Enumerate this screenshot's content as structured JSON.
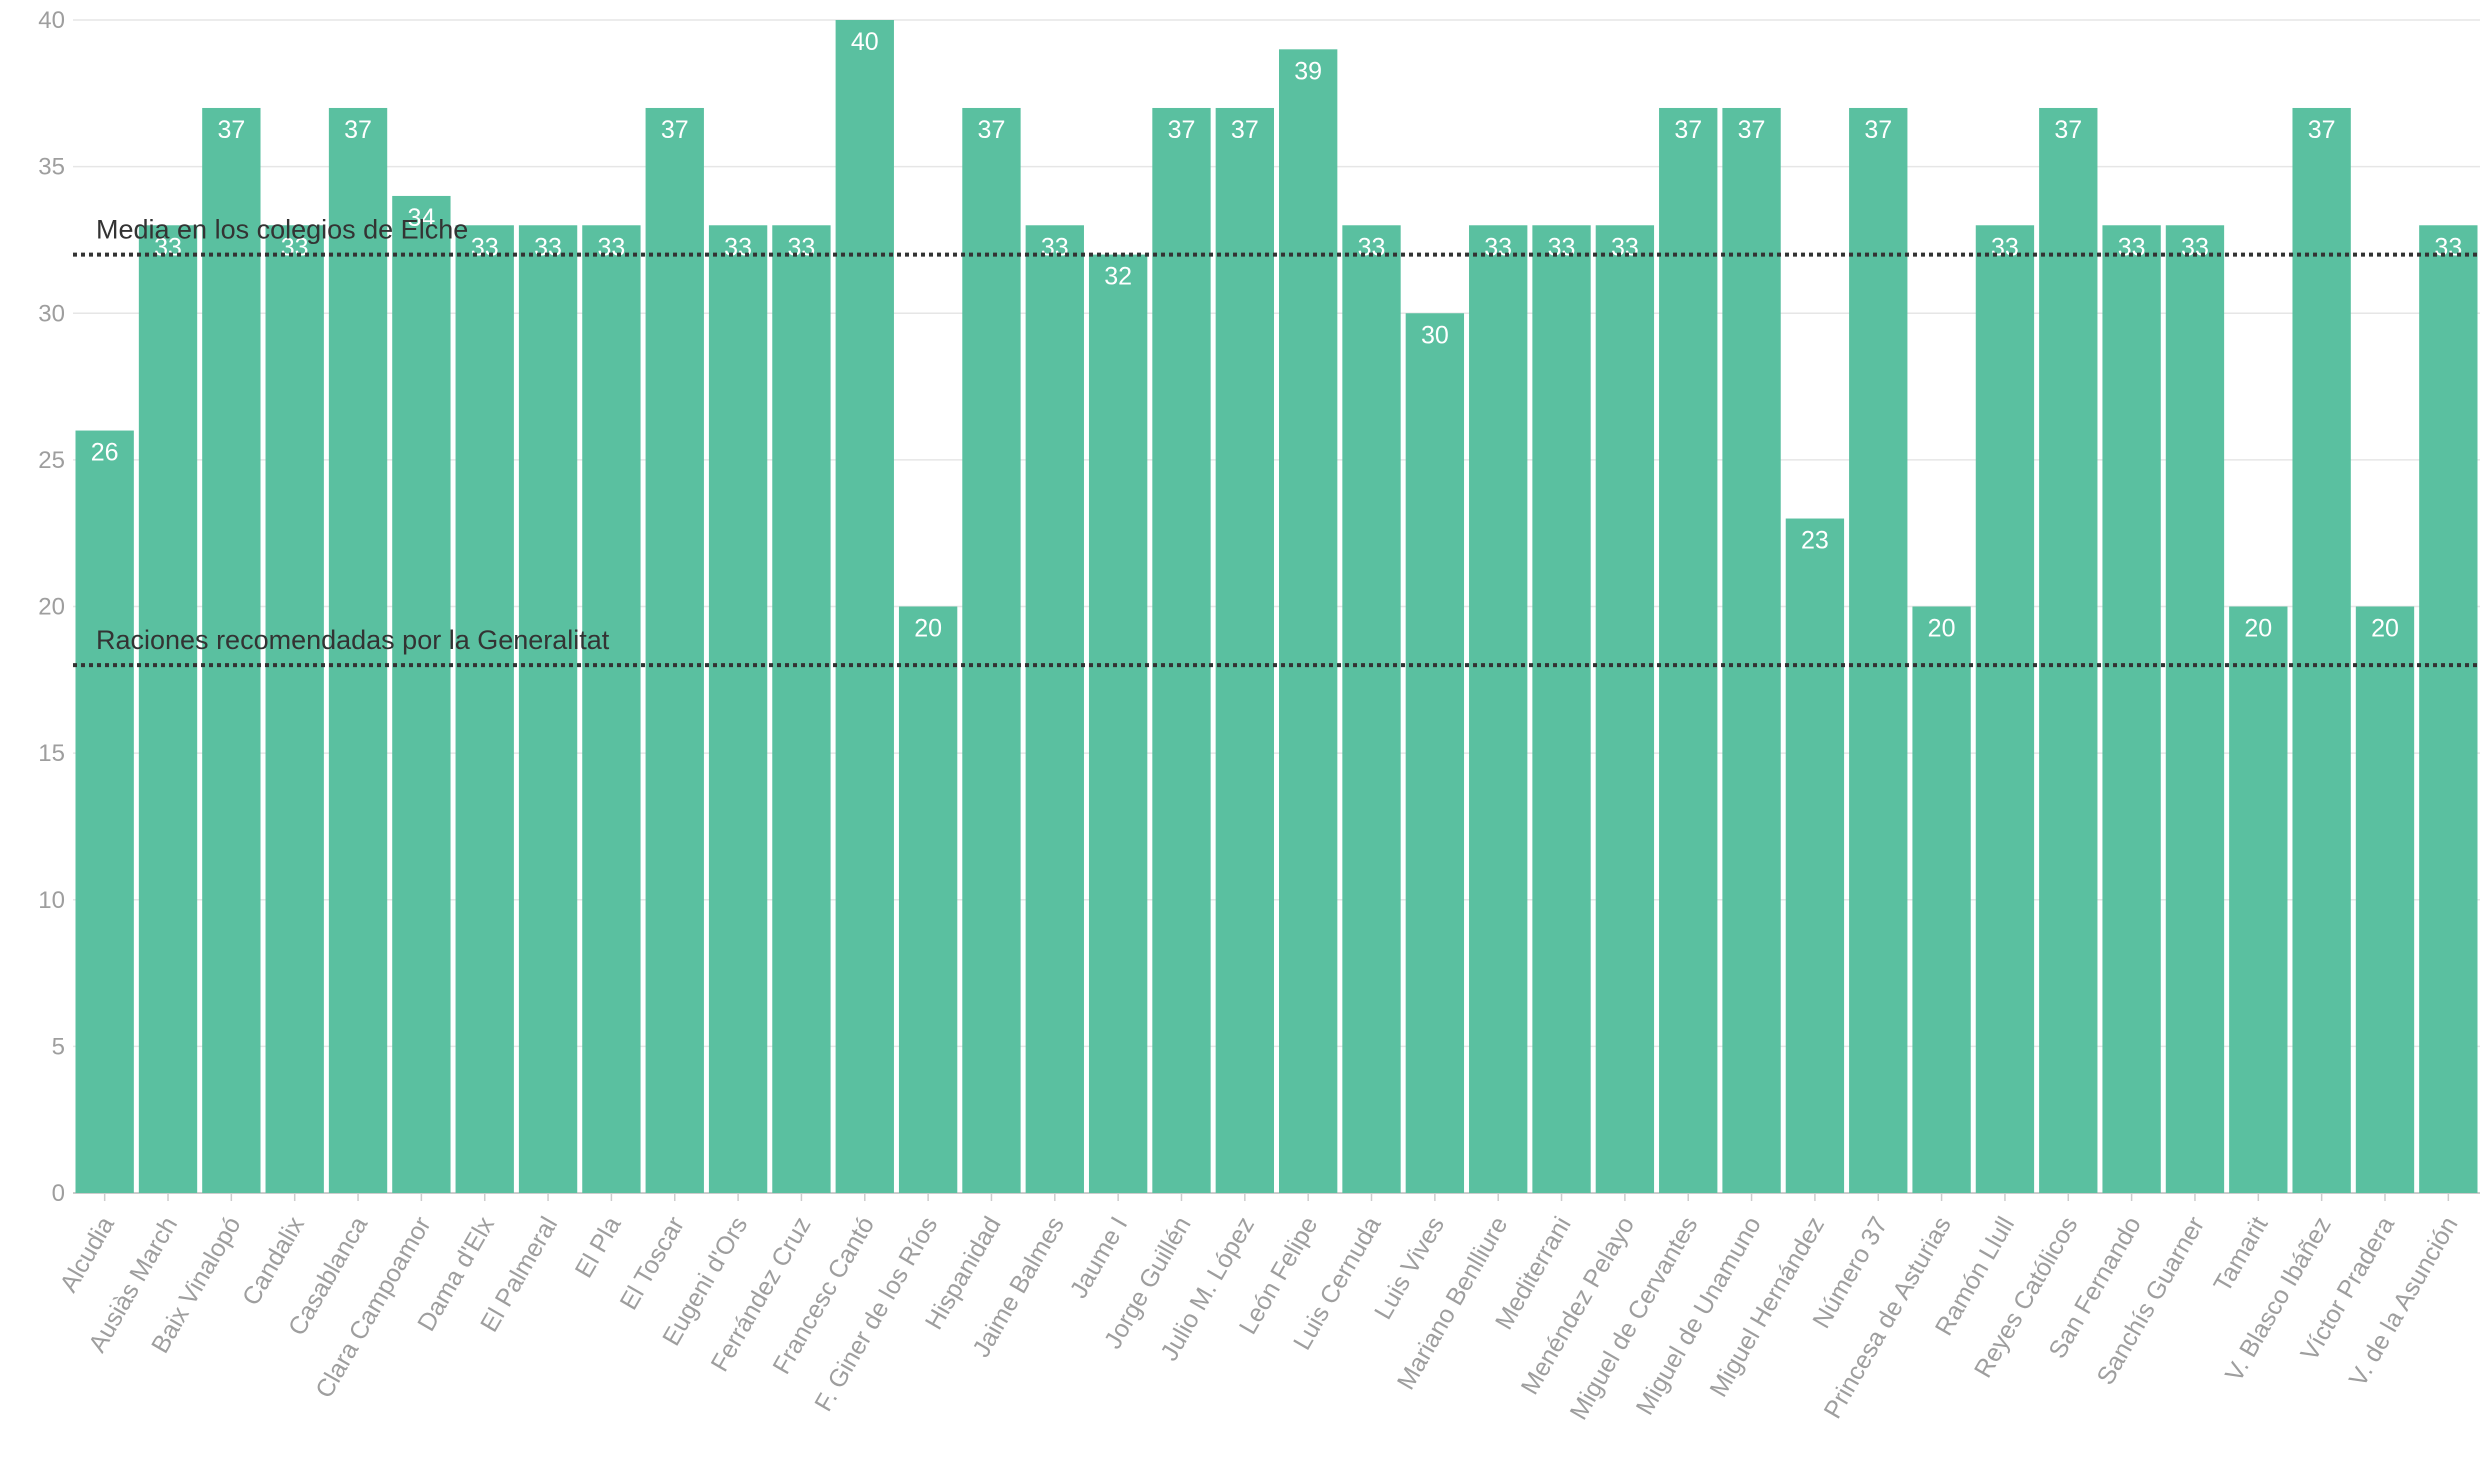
{
  "colors": {
    "bar": "#5ac0a0",
    "grid": "#e6e6e6",
    "axis": "#cccccc",
    "tick_text": "#9e9e9e",
    "data_label": "#ffffff",
    "ref_line": "#333333"
  },
  "chart_data": {
    "type": "bar",
    "title": "",
    "xlabel": "",
    "ylabel": "",
    "ylim": [
      0,
      40
    ],
    "yticks": [
      0,
      5,
      10,
      15,
      20,
      25,
      30,
      35,
      40
    ],
    "grid": true,
    "categories": [
      "Alcudia",
      "Ausiàs March",
      "Baix Vinalopó",
      "Candalix",
      "Casablanca",
      "Clara Campoamor",
      "Dama d'Elx",
      "El Palmeral",
      "El Pla",
      "El Toscar",
      "Eugeni d'Ors",
      "Ferrández Cruz",
      "Francesc Cantó",
      "F. Giner de los Ríos",
      "Hispanidad",
      "Jaime Balmes",
      "Jaume I",
      "Jorge Guillén",
      "Julio M. López",
      "León Felipe",
      "Luis Cernuda",
      "Luis Vives",
      "Mariano Benlliure",
      "Mediterrani",
      "Menéndez Pelayo",
      "Miguel de Cervantes",
      "Miguel de Unamuno",
      "Miguel Hernández",
      "Número 37",
      "Princesa de Asturias",
      "Ramón Llull",
      "Reyes Católicos",
      "San Fernando",
      "Sanchís Guarner",
      "Tamarit",
      "V. Blasco Ibáñez",
      "Víctor Pradera",
      "V. de la Asunción"
    ],
    "values": [
      26,
      33,
      37,
      33,
      37,
      34,
      33,
      33,
      33,
      37,
      33,
      33,
      40,
      20,
      37,
      33,
      32,
      37,
      37,
      39,
      33,
      30,
      33,
      33,
      33,
      37,
      37,
      23,
      37,
      20,
      33,
      37,
      33,
      33,
      20,
      37,
      20,
      33
    ],
    "reference_lines": [
      {
        "label": "Media en los colegios de Elche",
        "value": 32
      },
      {
        "label": "Raciones recomendadas por la Generalitat",
        "value": 18
      }
    ]
  }
}
